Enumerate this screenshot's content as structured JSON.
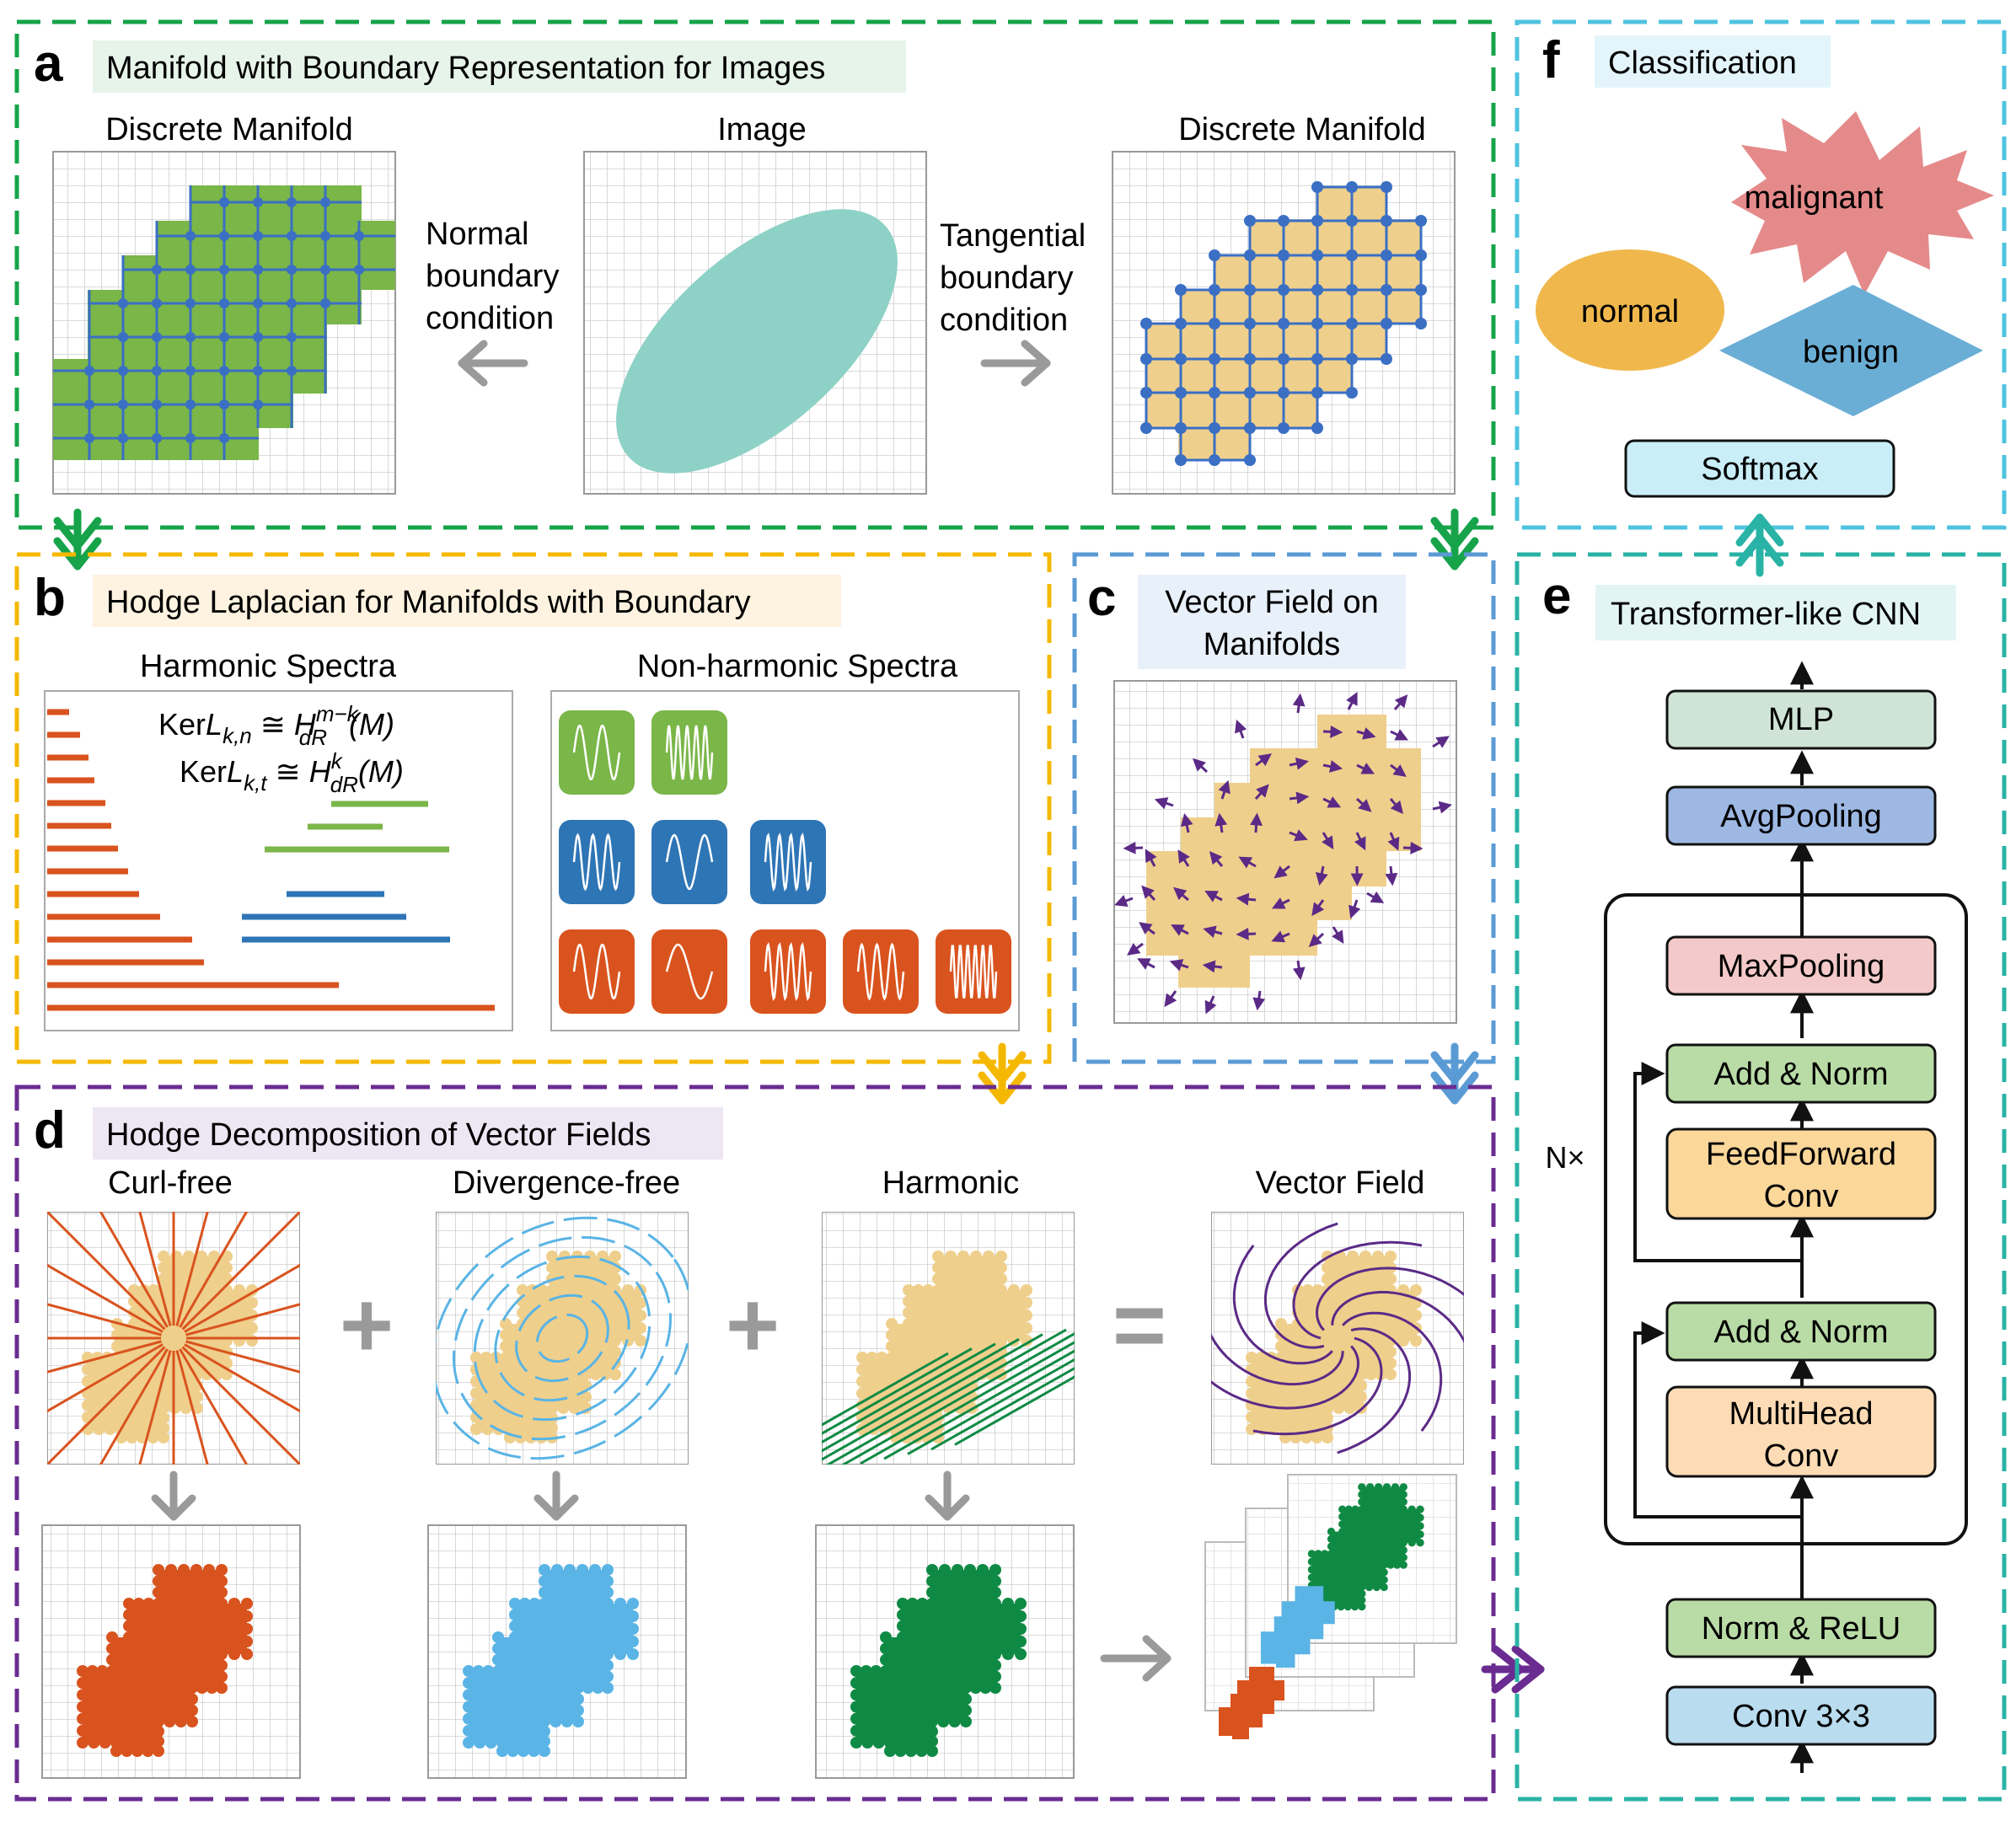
{
  "panels": {
    "a": {
      "letter": "a",
      "title": "Manifold with Boundary Representation for Images",
      "left_label": "Discrete Manifold",
      "center_label": "Image",
      "right_label": "Discrete Manifold",
      "normal_text": [
        "Normal",
        "boundary",
        "condition"
      ],
      "tangential_text": [
        "Tangential",
        "boundary",
        "condition"
      ]
    },
    "b": {
      "letter": "b",
      "title": "Hodge Laplacian for Manifolds with Boundary",
      "harmonic_label": "Harmonic Spectra",
      "nonharmonic_label": "Non-harmonic Spectra",
      "formula_lines": [
        {
          "prefix": "Ker",
          "L": "L",
          "sub": "k,n",
          "iso": " ≅ ",
          "H": "H",
          "hsub": "dR",
          "hsup": "m−k",
          "tail": "(M)"
        },
        {
          "prefix": "Ker",
          "L": "L",
          "sub": "k,t",
          "iso": " ≅ ",
          "H": "H",
          "hsub": "dR",
          "hsup": "k",
          "tail": "(M)"
        }
      ]
    },
    "c": {
      "letter": "c",
      "title_lines": [
        "Vector Field on",
        "Manifolds"
      ]
    },
    "d": {
      "letter": "d",
      "title": "Hodge Decomposition of Vector Fields",
      "labels": [
        "Curl-free",
        "Divergence-free",
        "Harmonic",
        "Vector Field"
      ],
      "plus": "+",
      "equals": "="
    },
    "e": {
      "letter": "e",
      "title": "Transformer-like CNN",
      "repeat_label": "N×",
      "blocks": {
        "mlp": "MLP",
        "avgpool": "AvgPooling",
        "maxpool": "MaxPooling",
        "addnorm_top": "Add & Norm",
        "ffconv": [
          "FeedForward",
          "Conv"
        ],
        "addnorm_bottom": "Add & Norm",
        "mhconv": [
          "MultiHead",
          "Conv"
        ],
        "normrelu": "Norm & ReLU",
        "conv": "Conv 3×3"
      }
    },
    "f": {
      "letter": "f",
      "title": "Classification",
      "classes": [
        "malignant",
        "normal",
        "benign"
      ],
      "softmax": "Softmax"
    }
  },
  "colors": {
    "panel_a_border": "#16a34a",
    "panel_b_border": "#f5b800",
    "panel_c_border": "#5b9bd5",
    "panel_d_border": "#6a2c91",
    "panel_e_border": "#29b3a6",
    "panel_f_border": "#4fc3e0",
    "manifold_green": "#7ab648",
    "manifold_tan": "#efcf8c",
    "grid_blue": "#3a6fc4",
    "ellipse_teal": "#8ed1c6",
    "orange": "#d9531e",
    "light_blue": "#5ab4e5",
    "dark_green": "#0f8a44",
    "purple": "#5b2a86",
    "mlp_fill": "#cfe3d7",
    "avgpool_fill": "#9db8e3",
    "maxpool_fill": "#f3c9c9",
    "addnorm_fill": "#b9dca6",
    "ffconv_fill": "#fbd79a",
    "mhconv_fill": "#fddcb5",
    "conv_fill": "#b9dcef",
    "malignant_fill": "#e58a8a",
    "normal_fill": "#f0b84c",
    "benign_fill": "#6aaed6",
    "softmax_fill": "#c9eef7"
  }
}
